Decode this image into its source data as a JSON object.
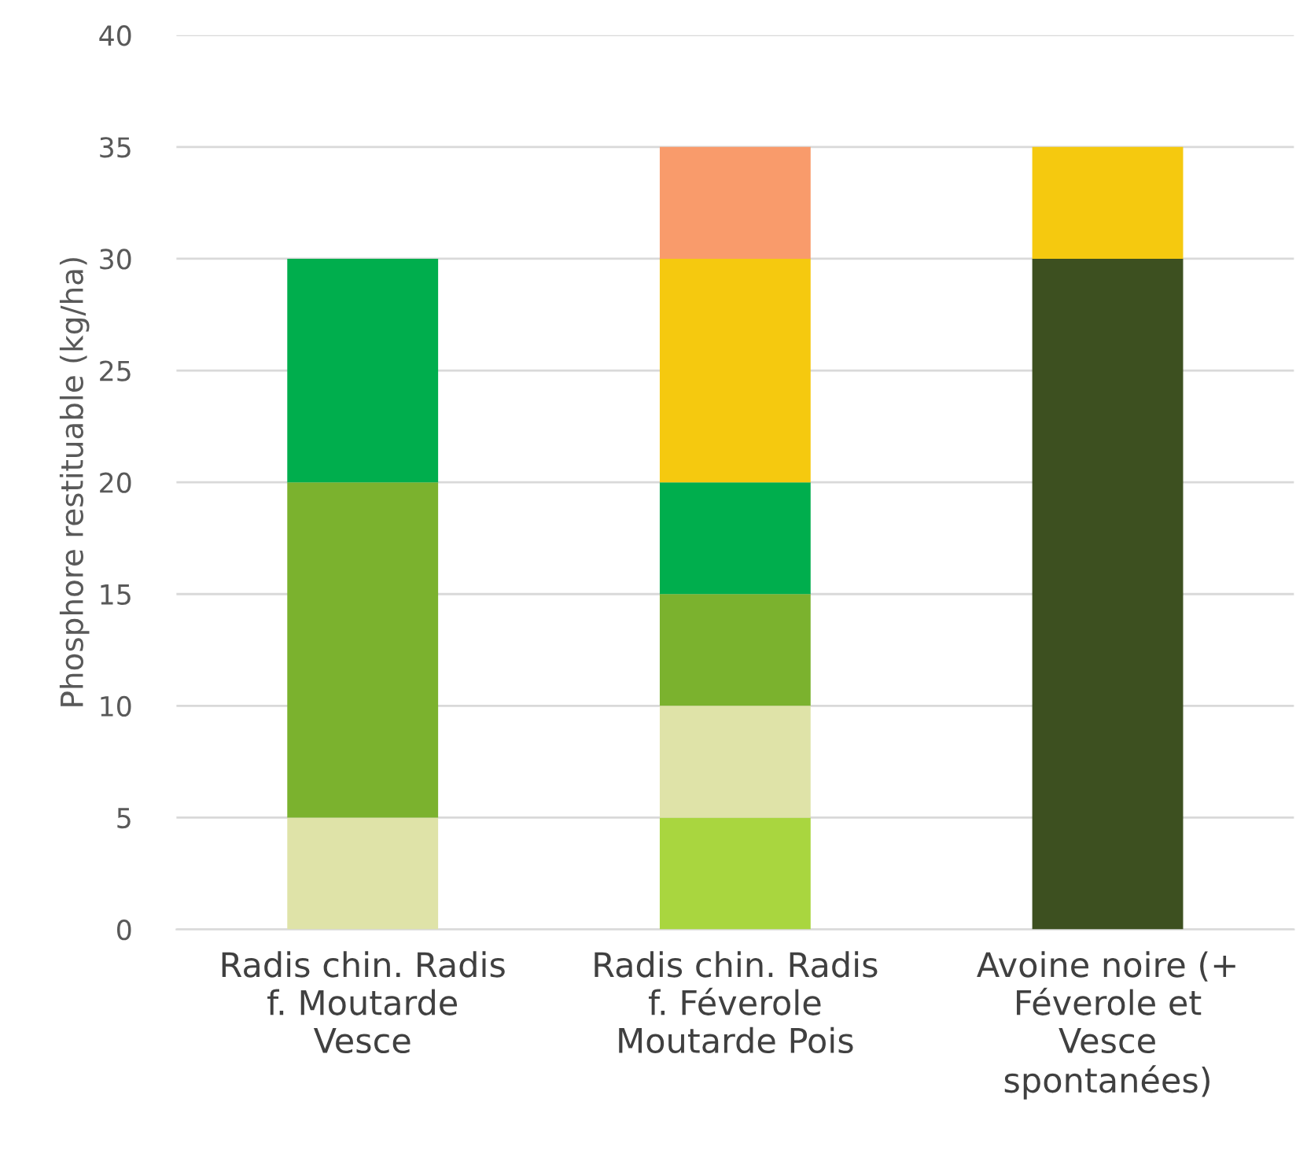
{
  "chart_data": {
    "type": "bar",
    "stacked": true,
    "ylabel": "Phosphore restituable (kg/ha)",
    "categories": [
      "Radis chin. Radis\nf. Moutarde\nVesce",
      "Radis chin. Radis\nf. Féverole\nMoutarde Pois",
      "Avoine noire (+\nFéverole et\nVesce\nspontanées)"
    ],
    "series": [
      {
        "color": "#a9d63f",
        "values": [
          null,
          5,
          null
        ]
      },
      {
        "color": "#dfe3a8",
        "values": [
          5,
          5,
          null
        ]
      },
      {
        "color": "#7bb22e",
        "values": [
          15,
          5,
          null
        ]
      },
      {
        "color": "#00ae4d",
        "values": [
          10,
          5,
          null
        ]
      },
      {
        "color": "#3d5020",
        "values": [
          null,
          null,
          30
        ]
      },
      {
        "color": "#f5c90f",
        "values": [
          null,
          10,
          5
        ]
      },
      {
        "color": "#f99b6b",
        "values": [
          null,
          5,
          null
        ]
      }
    ],
    "ylim": [
      0,
      40
    ],
    "yticks": [
      0,
      5,
      10,
      15,
      20,
      25,
      30,
      35,
      40
    ],
    "grid": "y",
    "legend": false
  }
}
